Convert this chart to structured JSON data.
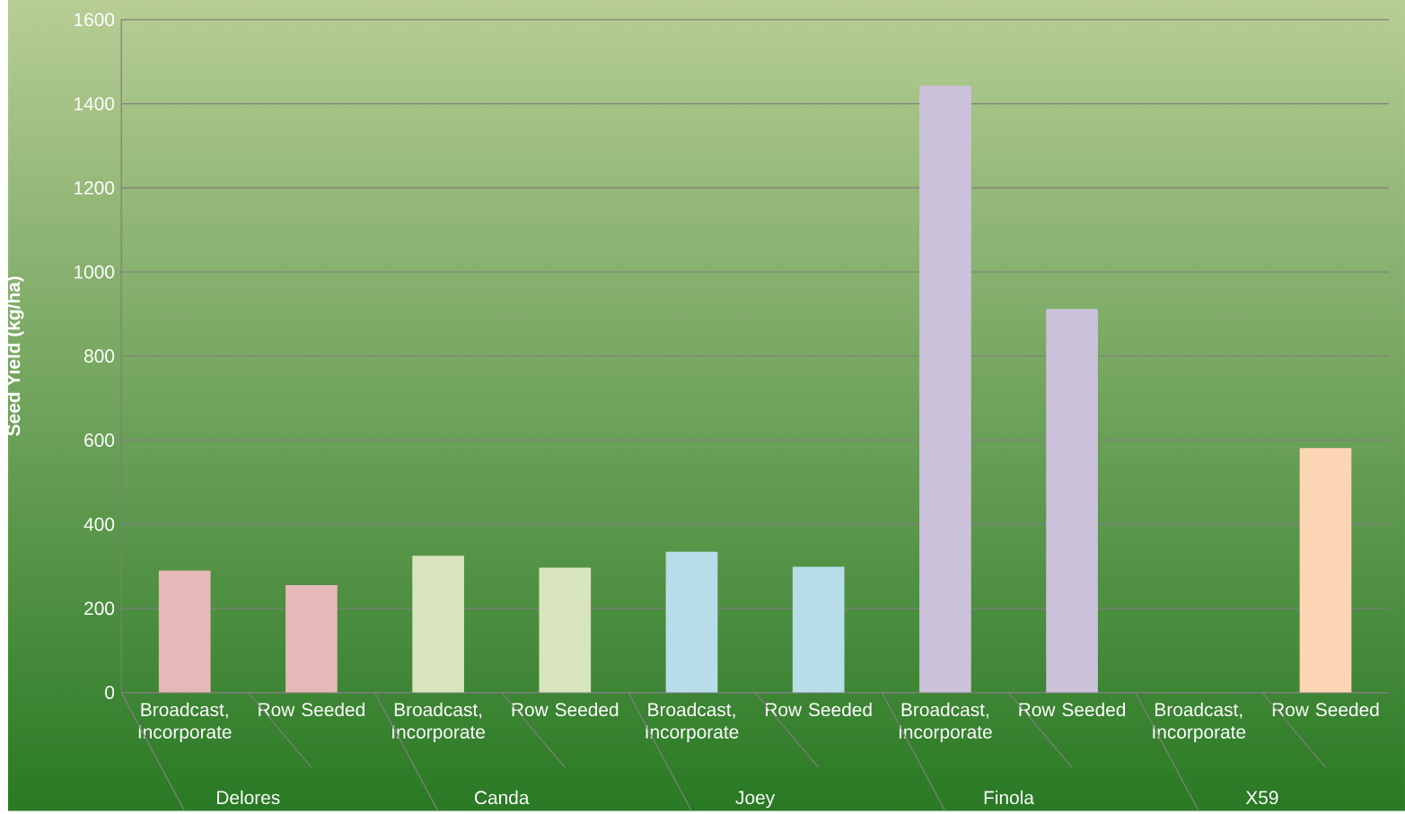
{
  "chart_data": {
    "type": "bar",
    "ylabel": "Seed Yield (kg/ha)",
    "categories": [
      "Broadcast, Incorporate",
      "Row Seeded",
      "Broadcast, Incorporate",
      "Row Seeded",
      "Broadcast, Incorporate",
      "Row Seeded",
      "Broadcast, Incorporate",
      "Row Seeded",
      "Broadcast, Incorporate",
      "Row Seeded"
    ],
    "values": [
      290,
      255,
      325,
      297,
      335,
      299,
      1443,
      912,
      null,
      581
    ],
    "colors": [
      "#e6b9b8",
      "#e6b9b8",
      "#d7e4bd",
      "#d7e4bd",
      "#b7dee8",
      "#b7dee8",
      "#ccc1da",
      "#ccc1da",
      "#fcd5b5",
      "#fcd5b5"
    ],
    "ylim": [
      0,
      1600
    ],
    "yticks": [
      0,
      200,
      400,
      600,
      800,
      1000,
      1200,
      1400,
      1600
    ],
    "grid": "y",
    "annotations": [
      "Delores",
      "Canda",
      "Joey",
      "Finola",
      "X59"
    ]
  }
}
